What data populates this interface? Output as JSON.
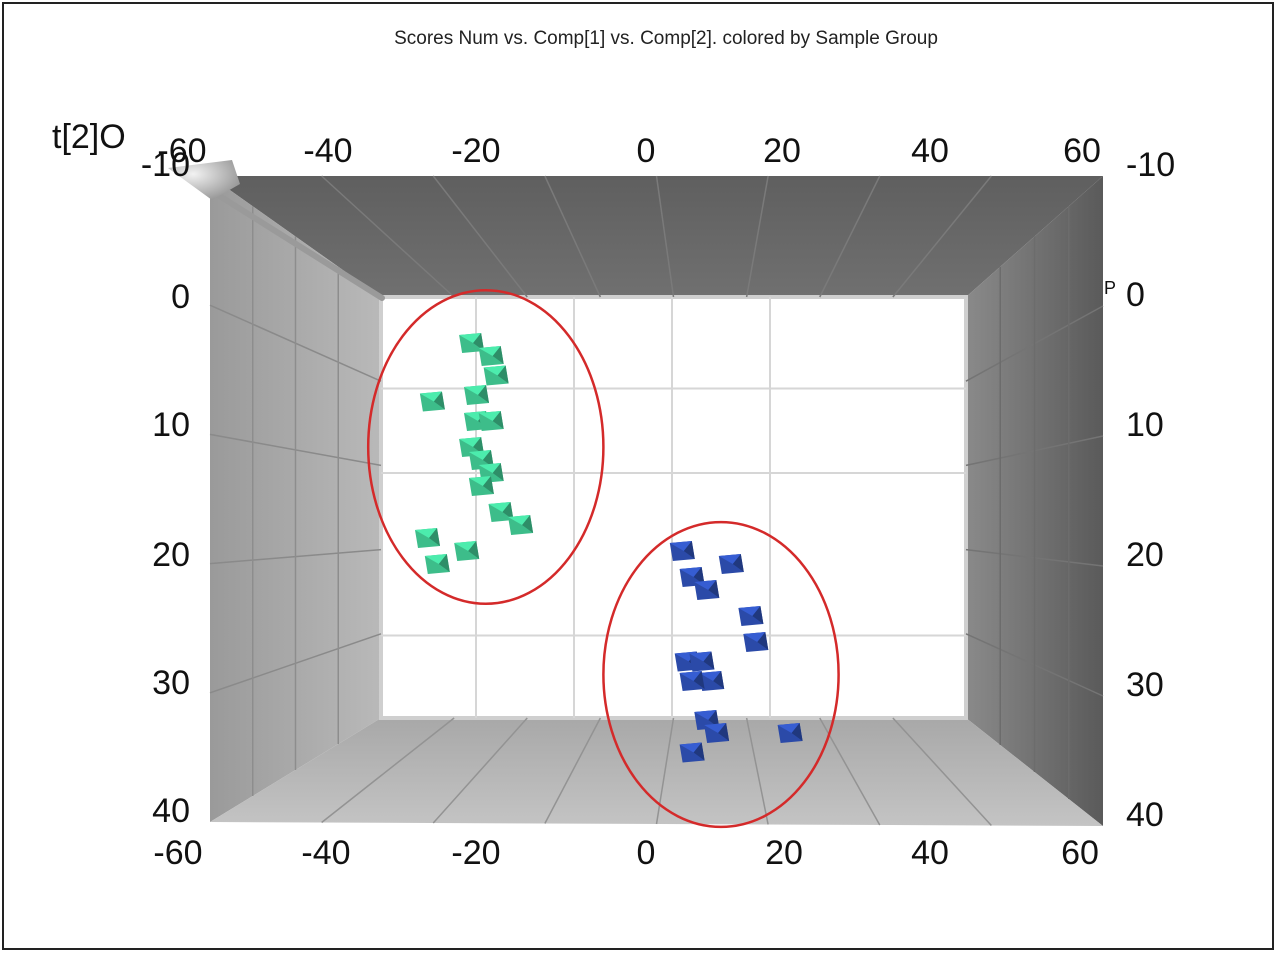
{
  "chart_data": {
    "type": "scatter",
    "title": "Scores Num vs. Comp[1] vs. Comp[2]. colored by Sample Group",
    "ylabel": "t[2]O",
    "xlabel": "",
    "xlim": [
      -60,
      60
    ],
    "ylim": [
      -10,
      40
    ],
    "y_reversed": true,
    "x_ticks_bottom": [
      "-60",
      "-40",
      "-20",
      "0",
      "20",
      "40",
      "60"
    ],
    "x_ticks_top": [
      "-60",
      "-40",
      "-20",
      "0",
      "20",
      "40",
      "60"
    ],
    "y_ticks_left": [
      "-10",
      "0",
      "10",
      "20",
      "30",
      "40"
    ],
    "y_ticks_right": [
      "-10",
      "0",
      "10",
      "20",
      "30",
      "40"
    ],
    "right_axis_fragment": "P",
    "grid": true,
    "series": [
      {
        "color": "#3dbd8a",
        "points": [
          [
            -21,
            3
          ],
          [
            -17,
            4
          ],
          [
            -16,
            5.5
          ],
          [
            -29,
            7.5
          ],
          [
            -20,
            7
          ],
          [
            -20,
            9
          ],
          [
            -17,
            9
          ],
          [
            -21,
            11
          ],
          [
            -19,
            12
          ],
          [
            -17,
            13
          ],
          [
            -19,
            14
          ],
          [
            -15,
            16
          ],
          [
            -11,
            17
          ],
          [
            -30,
            18
          ],
          [
            -28,
            20
          ],
          [
            -22,
            19
          ]
        ]
      },
      {
        "color": "#2b4aa8",
        "points": [
          [
            22,
            19
          ],
          [
            24,
            21
          ],
          [
            27,
            22
          ],
          [
            32,
            20
          ],
          [
            36,
            24
          ],
          [
            37,
            26
          ],
          [
            23,
            27.5
          ],
          [
            26,
            27.5
          ],
          [
            28,
            29
          ],
          [
            24,
            29
          ],
          [
            27,
            32
          ],
          [
            29,
            33
          ],
          [
            24,
            34.5
          ],
          [
            44,
            33
          ]
        ]
      }
    ],
    "annotations": [
      {
        "shape": "ellipse",
        "color": "#d42a2a",
        "center": [
          -18,
          11
        ],
        "radii": [
          16,
          18
        ]
      },
      {
        "shape": "ellipse",
        "color": "#d42a2a",
        "center": [
          30,
          28.5
        ],
        "radii": [
          16,
          17.5
        ]
      }
    ]
  }
}
